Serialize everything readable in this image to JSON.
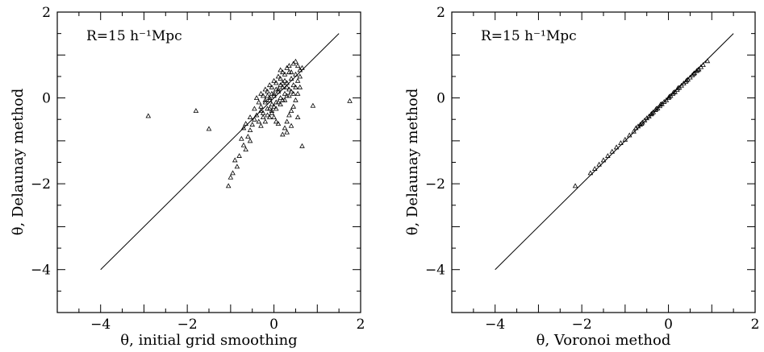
{
  "chart_data": [
    {
      "type": "scatter",
      "annotation": "R=15 h⁻¹Mpc",
      "xlabel": "θ, initial grid smoothing",
      "ylabel": "θ, Delaunay method",
      "xlim": [
        -5,
        2
      ],
      "ylim": [
        -5,
        2
      ],
      "xticks": [
        -4,
        -2,
        0,
        2
      ],
      "yticks": [
        -4,
        -2,
        0,
        2
      ],
      "xtick_labels": [
        "−4",
        "−2",
        "0",
        "2"
      ],
      "ytick_labels": [
        "−4",
        "−2",
        "0",
        "2"
      ],
      "reference_line": {
        "from": [
          -4,
          -4
        ],
        "to": [
          1.5,
          1.5
        ]
      },
      "marker": "open-triangle",
      "grid": false,
      "points": [
        [
          -2.9,
          -0.42
        ],
        [
          -1.8,
          -0.3
        ],
        [
          -1.5,
          -0.72
        ],
        [
          0.9,
          -0.18
        ],
        [
          1.75,
          -0.07
        ],
        [
          0.65,
          -1.12
        ],
        [
          -1.05,
          -2.05
        ],
        [
          -1.0,
          -1.85
        ],
        [
          -0.95,
          -1.75
        ],
        [
          -0.9,
          -1.45
        ],
        [
          -0.8,
          -1.35
        ],
        [
          -0.85,
          -1.6
        ],
        [
          -0.7,
          -1.1
        ],
        [
          -0.6,
          -0.9
        ],
        [
          -0.75,
          -0.95
        ],
        [
          -0.65,
          -1.2
        ],
        [
          -0.55,
          -1.0
        ],
        [
          -0.55,
          -0.75
        ],
        [
          -0.45,
          -0.5
        ],
        [
          -0.5,
          -0.62
        ],
        [
          -0.4,
          -0.4
        ],
        [
          -0.35,
          -0.55
        ],
        [
          -0.3,
          -0.2
        ],
        [
          -0.25,
          -0.35
        ],
        [
          -0.2,
          -0.1
        ],
        [
          -0.15,
          -0.25
        ],
        [
          -0.1,
          -0.05
        ],
        [
          -0.05,
          -0.15
        ],
        [
          0.0,
          0.05
        ],
        [
          0.05,
          -0.1
        ],
        [
          0.1,
          0.15
        ],
        [
          0.15,
          0.0
        ],
        [
          0.2,
          0.25
        ],
        [
          0.25,
          0.1
        ],
        [
          0.3,
          0.35
        ],
        [
          0.35,
          0.2
        ],
        [
          0.4,
          0.45
        ],
        [
          0.45,
          0.3
        ],
        [
          0.5,
          0.55
        ],
        [
          0.55,
          0.4
        ],
        [
          0.6,
          0.65
        ],
        [
          0.45,
          0.8
        ],
        [
          0.55,
          0.75
        ],
        [
          0.3,
          0.7
        ],
        [
          0.2,
          0.6
        ],
        [
          0.1,
          0.5
        ],
        [
          0.0,
          0.4
        ],
        [
          -0.1,
          0.3
        ],
        [
          -0.2,
          0.2
        ],
        [
          -0.3,
          0.1
        ],
        [
          -0.4,
          0.0
        ],
        [
          -0.35,
          -0.1
        ],
        [
          -0.25,
          0.05
        ],
        [
          -0.15,
          0.15
        ],
        [
          -0.05,
          0.25
        ],
        [
          0.05,
          0.35
        ],
        [
          0.15,
          0.45
        ],
        [
          0.25,
          0.55
        ],
        [
          0.35,
          0.6
        ],
        [
          0.5,
          0.85
        ],
        [
          0.6,
          0.25
        ],
        [
          0.55,
          0.1
        ],
        [
          0.5,
          -0.05
        ],
        [
          0.45,
          -0.2
        ],
        [
          0.4,
          -0.3
        ],
        [
          0.35,
          -0.4
        ],
        [
          0.3,
          -0.55
        ],
        [
          0.25,
          -0.7
        ],
        [
          0.2,
          -0.85
        ],
        [
          0.1,
          -0.6
        ],
        [
          0.0,
          -0.45
        ],
        [
          -0.05,
          -0.35
        ],
        [
          -0.1,
          -0.25
        ],
        [
          0.0,
          -0.2
        ],
        [
          0.1,
          -0.1
        ],
        [
          0.2,
          -0.05
        ],
        [
          0.3,
          0.05
        ],
        [
          0.4,
          0.15
        ],
        [
          0.5,
          0.25
        ],
        [
          0.3,
          0.25
        ],
        [
          0.2,
          0.35
        ],
        [
          0.1,
          0.2
        ],
        [
          0.0,
          0.1
        ],
        [
          -0.1,
          0.0
        ],
        [
          -0.2,
          -0.05
        ],
        [
          -0.3,
          -0.3
        ],
        [
          -0.25,
          -0.45
        ],
        [
          -0.15,
          -0.4
        ],
        [
          -0.05,
          -0.3
        ],
        [
          0.05,
          -0.25
        ],
        [
          0.15,
          -0.15
        ],
        [
          0.25,
          -0.05
        ],
        [
          0.35,
          0.05
        ],
        [
          0.45,
          0.1
        ],
        [
          0.6,
          0.5
        ],
        [
          0.65,
          0.7
        ],
        [
          0.4,
          0.6
        ],
        [
          0.25,
          0.4
        ],
        [
          0.15,
          0.3
        ],
        [
          0.05,
          0.2
        ],
        [
          -0.05,
          0.1
        ],
        [
          -0.15,
          0.05
        ],
        [
          -0.45,
          -0.25
        ],
        [
          -0.55,
          -0.45
        ],
        [
          -0.65,
          -0.6
        ],
        [
          -0.7,
          -0.7
        ],
        [
          -0.3,
          -0.65
        ],
        [
          -0.2,
          -0.55
        ],
        [
          -0.1,
          -0.45
        ],
        [
          0.05,
          -0.55
        ],
        [
          0.3,
          -0.8
        ],
        [
          0.4,
          -0.65
        ],
        [
          0.55,
          -0.45
        ],
        [
          0.15,
          0.65
        ],
        [
          0.35,
          0.75
        ]
      ]
    },
    {
      "type": "scatter",
      "annotation": "R=15 h⁻¹Mpc",
      "xlabel": "θ, Voronoi method",
      "ylabel": "θ, Delaunay method",
      "xlim": [
        -5,
        2
      ],
      "ylim": [
        -5,
        2
      ],
      "xticks": [
        -4,
        -2,
        0,
        2
      ],
      "yticks": [
        -4,
        -2,
        0,
        2
      ],
      "xtick_labels": [
        "−4",
        "−2",
        "0",
        "2"
      ],
      "ytick_labels": [
        "−4",
        "−2",
        "0",
        "2"
      ],
      "reference_line": {
        "from": [
          -4,
          -4
        ],
        "to": [
          1.5,
          1.5
        ]
      },
      "marker": "open-triangle",
      "grid": false,
      "points": [
        [
          -2.15,
          -2.05
        ],
        [
          -1.8,
          -1.75
        ],
        [
          -1.7,
          -1.65
        ],
        [
          -1.6,
          -1.55
        ],
        [
          -1.5,
          -1.45
        ],
        [
          -1.4,
          -1.35
        ],
        [
          -1.3,
          -1.25
        ],
        [
          -1.2,
          -1.15
        ],
        [
          -1.1,
          -1.05
        ],
        [
          -1.0,
          -0.97
        ],
        [
          -0.9,
          -0.87
        ],
        [
          -0.8,
          -0.78
        ],
        [
          -0.75,
          -0.7
        ],
        [
          -0.7,
          -0.66
        ],
        [
          -0.65,
          -0.62
        ],
        [
          -0.6,
          -0.57
        ],
        [
          -0.55,
          -0.52
        ],
        [
          -0.5,
          -0.47
        ],
        [
          -0.45,
          -0.43
        ],
        [
          -0.4,
          -0.38
        ],
        [
          -0.35,
          -0.33
        ],
        [
          -0.3,
          -0.28
        ],
        [
          -0.25,
          -0.24
        ],
        [
          -0.2,
          -0.19
        ],
        [
          -0.15,
          -0.14
        ],
        [
          -0.1,
          -0.09
        ],
        [
          -0.05,
          -0.05
        ],
        [
          0.0,
          0.0
        ],
        [
          0.05,
          0.05
        ],
        [
          0.1,
          0.1
        ],
        [
          0.15,
          0.14
        ],
        [
          0.2,
          0.19
        ],
        [
          0.25,
          0.24
        ],
        [
          0.3,
          0.29
        ],
        [
          0.35,
          0.34
        ],
        [
          0.4,
          0.38
        ],
        [
          0.45,
          0.43
        ],
        [
          0.5,
          0.48
        ],
        [
          0.55,
          0.53
        ],
        [
          0.6,
          0.58
        ],
        [
          0.65,
          0.63
        ],
        [
          0.7,
          0.67
        ],
        [
          0.75,
          0.72
        ],
        [
          0.8,
          0.77
        ],
        [
          0.9,
          0.86
        ],
        [
          -0.62,
          -0.6
        ],
        [
          -0.28,
          -0.25
        ],
        [
          0.12,
          0.13
        ],
        [
          0.42,
          0.41
        ],
        [
          0.68,
          0.65
        ],
        [
          -0.18,
          -0.15
        ],
        [
          0.22,
          0.23
        ],
        [
          0.58,
          0.56
        ],
        [
          -0.38,
          -0.36
        ],
        [
          0.02,
          0.03
        ]
      ]
    }
  ]
}
